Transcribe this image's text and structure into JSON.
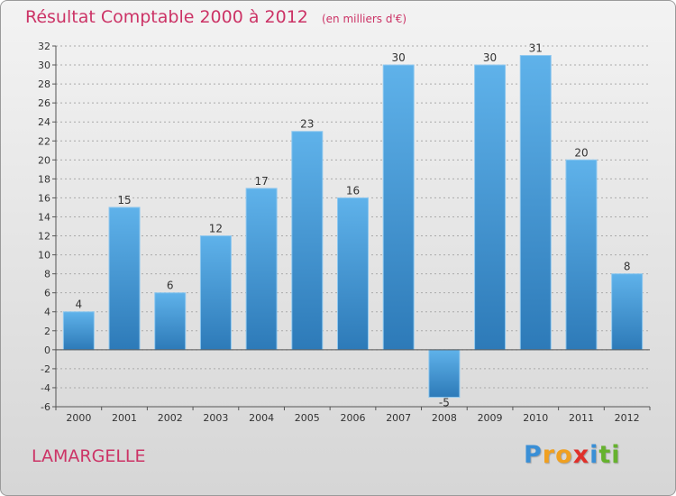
{
  "title": "Résultat Comptable 2000 à 2012",
  "subtitle": "(en milliers d'€)",
  "commune": "LAMARGELLE",
  "logo": {
    "letters": [
      {
        "char": "P",
        "color": "#3a8fd6"
      },
      {
        "char": "r",
        "color": "#f0a020"
      },
      {
        "char": "o",
        "color": "#f0a020"
      },
      {
        "char": "x",
        "color": "#e0302a"
      },
      {
        "char": "i",
        "color": "#3a8fd6"
      },
      {
        "char": "t",
        "color": "#66b22e"
      },
      {
        "char": "i",
        "color": "#66b22e"
      }
    ]
  },
  "colors": {
    "bar_top": "#5fb2ea",
    "bar_bottom": "#2d7ab8",
    "axis": "#555555",
    "grid": "#aaaaaa",
    "text_accent": "#cc3366"
  },
  "chart_data": {
    "type": "bar",
    "title": "Résultat Comptable 2000 à 2012",
    "subtitle": "(en milliers d'€)",
    "categories": [
      "2000",
      "2001",
      "2002",
      "2003",
      "2004",
      "2005",
      "2006",
      "2007",
      "2008",
      "2009",
      "2010",
      "2011",
      "2012"
    ],
    "values": [
      4,
      15,
      6,
      12,
      17,
      23,
      16,
      30,
      -5,
      30,
      31,
      20,
      8
    ],
    "labels": [
      "4",
      "15",
      "6",
      "12",
      "17",
      "23",
      "16",
      "30",
      "-5",
      "30",
      "31",
      "20",
      "8"
    ],
    "ylim": [
      -6,
      32
    ],
    "yticks": [
      -6,
      -4,
      -2,
      0,
      2,
      4,
      6,
      8,
      10,
      12,
      14,
      16,
      18,
      20,
      22,
      24,
      26,
      28,
      30,
      32
    ],
    "xlabel": "",
    "ylabel": "",
    "grid": "horizontal-dashed"
  }
}
